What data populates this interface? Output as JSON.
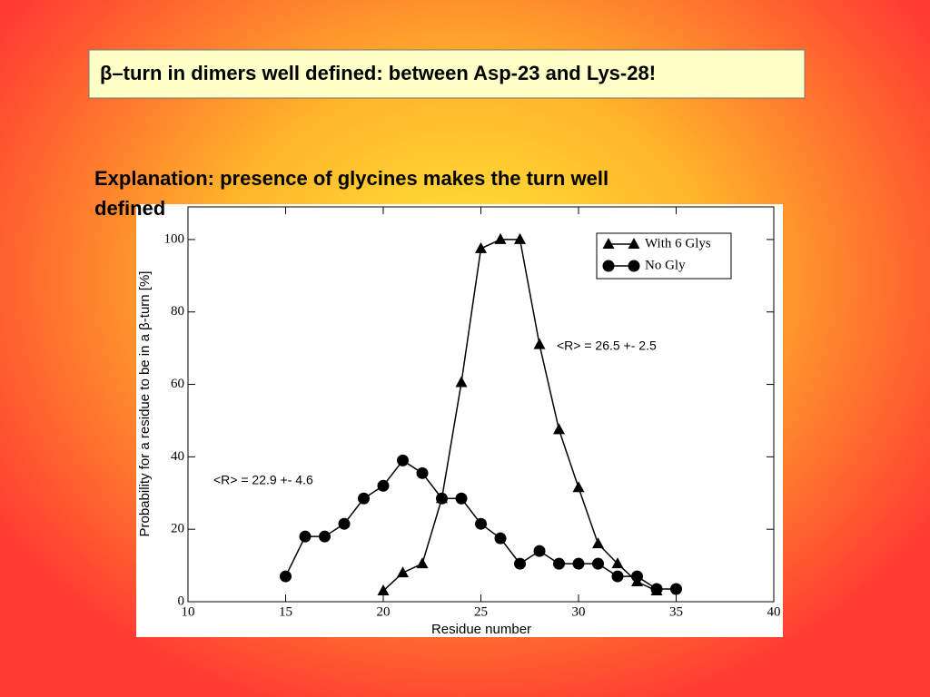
{
  "title": "β–turn in dimers well defined: between Asp-23 and Lys-28!",
  "subtitle": "Explanation: presence of glycines makes the turn well defined",
  "chart_data": {
    "type": "line",
    "xlabel": "Residue number",
    "ylabel": "Probability for a residue to be in a β-turn [%]",
    "xlim": [
      10,
      40
    ],
    "xticks": [
      10,
      15,
      20,
      25,
      30,
      35,
      40
    ],
    "ylim": [
      0,
      109
    ],
    "yticks": [
      0,
      20,
      40,
      60,
      80,
      100
    ],
    "legend": "upper right",
    "series": [
      {
        "name": "With 6 Glys",
        "color": "#000000",
        "marker": "triangle",
        "x": [
          20,
          21,
          22,
          23,
          24,
          25,
          26,
          27,
          28,
          29,
          30,
          31,
          32,
          33,
          34
        ],
        "values": [
          3,
          8,
          10.5,
          28.5,
          60.5,
          97.5,
          100,
          100,
          71,
          47.5,
          31.5,
          16,
          10.5,
          5.5,
          3
        ]
      },
      {
        "name": "No Gly",
        "color": "#000000",
        "marker": "circle",
        "x": [
          15,
          16,
          17,
          18,
          19,
          20,
          21,
          22,
          23,
          24,
          25,
          26,
          27,
          28,
          29,
          30,
          31,
          32,
          33,
          34,
          35
        ],
        "values": [
          7,
          18,
          18,
          21.5,
          28.5,
          32,
          39,
          35.5,
          28.5,
          28.5,
          21.5,
          17.5,
          10.5,
          14,
          10.5,
          10.5,
          10.5,
          7,
          7,
          3.5,
          3.5
        ]
      }
    ],
    "annotations": [
      "<R> = 26.5 +- 2.5",
      "<R> = 22.9 +- 4.6"
    ]
  }
}
